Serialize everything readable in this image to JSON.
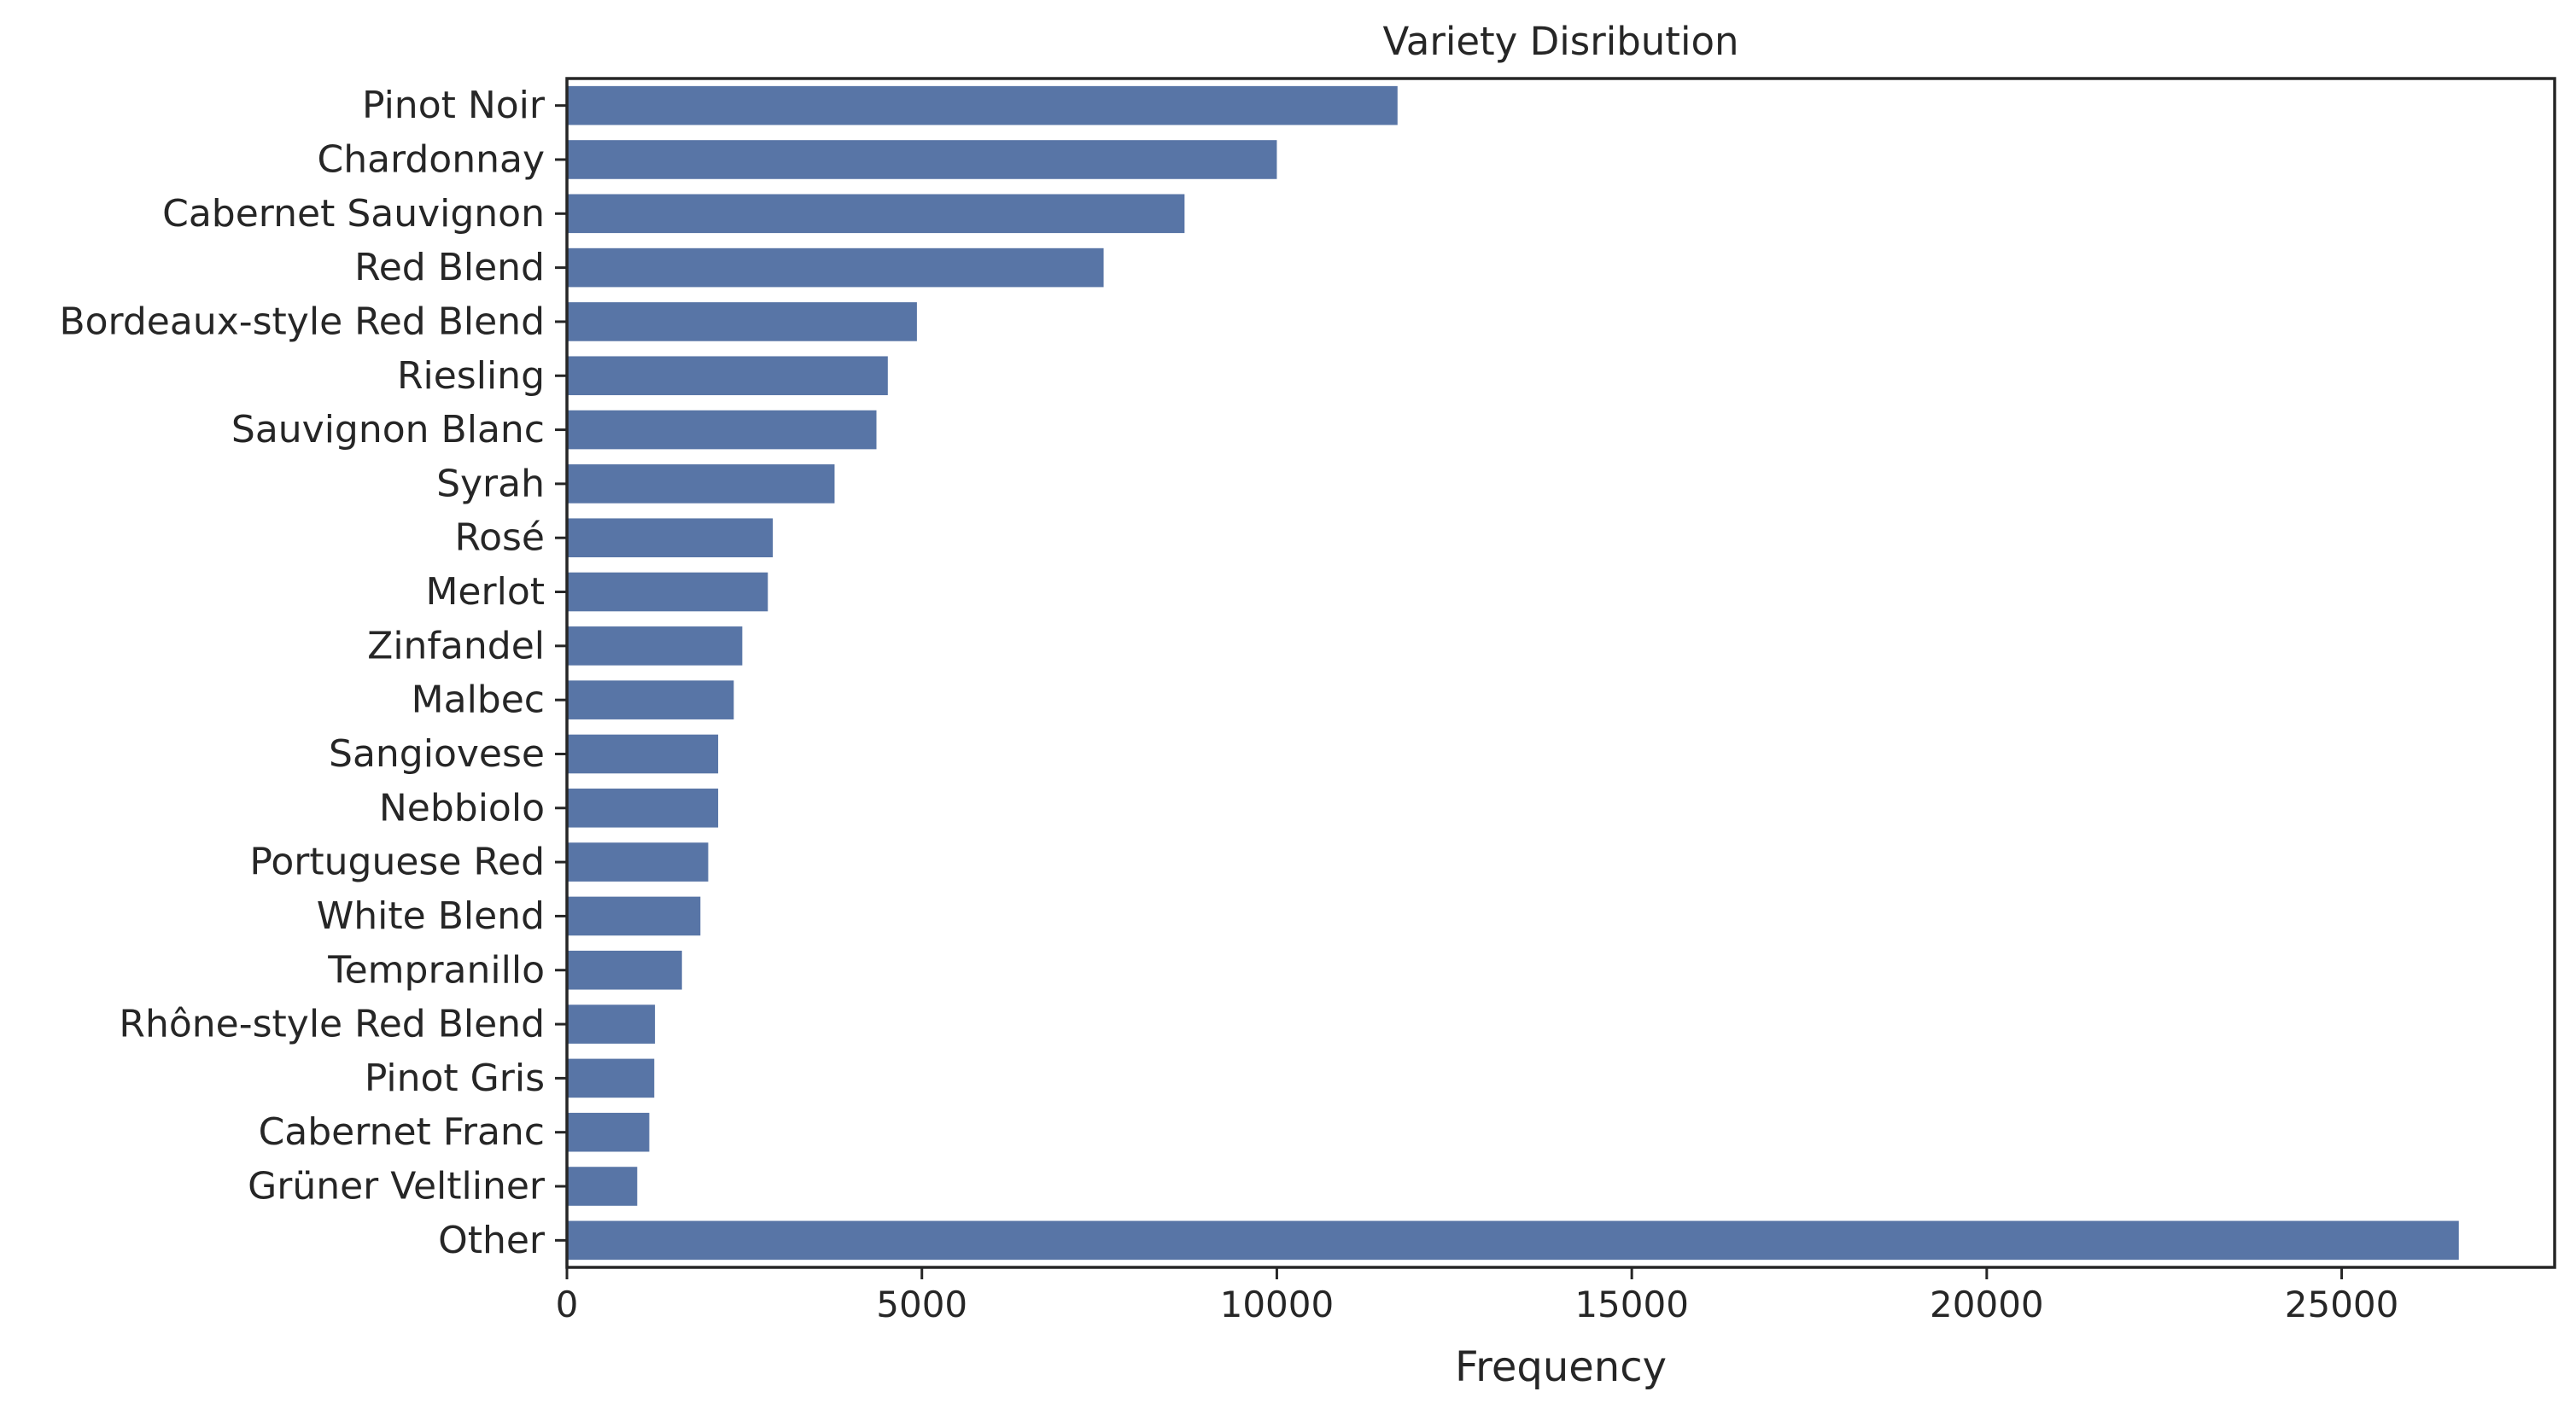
{
  "chart_data": {
    "type": "bar",
    "orientation": "horizontal",
    "title": "Variety Disribution",
    "xlabel": "Frequency",
    "ylabel": "",
    "xlim": [
      0,
      28000
    ],
    "xticks": [
      0,
      5000,
      10000,
      15000,
      20000,
      25000
    ],
    "xtick_labels": [
      "0",
      "5000",
      "10000",
      "15000",
      "20000",
      "25000"
    ],
    "grid": false,
    "bar_color": "#5875a6",
    "categories": [
      "Pinot Noir",
      "Chardonnay",
      "Cabernet Sauvignon",
      "Red Blend",
      "Bordeaux-style Red Blend",
      "Riesling",
      "Sauvignon Blanc",
      "Syrah",
      "Rosé",
      "Merlot",
      "Zinfandel",
      "Malbec",
      "Sangiovese",
      "Nebbiolo",
      "Portuguese Red",
      "White Blend",
      "Tempranillo",
      "Rhône-style Red Blend",
      "Pinot Gris",
      "Cabernet Franc",
      "Grüner Veltliner",
      "Other"
    ],
    "values": [
      11700,
      10000,
      8700,
      7560,
      4930,
      4520,
      4360,
      3770,
      2900,
      2830,
      2470,
      2350,
      2130,
      2130,
      1990,
      1880,
      1620,
      1240,
      1230,
      1160,
      990,
      26650
    ]
  }
}
